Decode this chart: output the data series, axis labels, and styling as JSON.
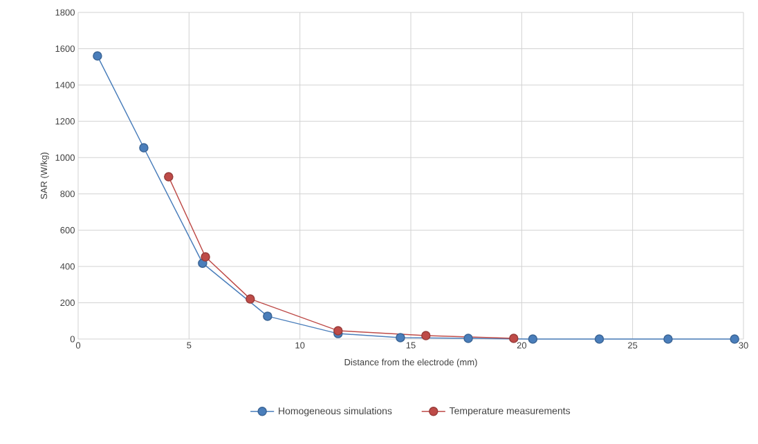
{
  "chart_data": {
    "type": "line",
    "xlabel": "Distance from the electrode (mm)",
    "ylabel": "SAR (W/kg)",
    "xlim": [
      0,
      30
    ],
    "xticks": [
      0,
      5,
      10,
      15,
      20,
      25,
      30
    ],
    "ylim": [
      0,
      1800
    ],
    "yticks": [
      0,
      200,
      400,
      600,
      800,
      1000,
      1200,
      1400,
      1600,
      1800
    ],
    "grid": true,
    "legend": "bottom",
    "marker": "circle",
    "line_style": "solid",
    "series": [
      {
        "name": "Homogeneous simulations",
        "color": "#4a7ebb",
        "x": [
          0.87,
          2.96,
          5.61,
          8.54,
          11.72,
          14.53,
          17.59,
          20.5,
          23.5,
          26.6,
          29.6
        ],
        "values": [
          1560,
          1054,
          418,
          126,
          30,
          8,
          4,
          0,
          0,
          0,
          0
        ]
      },
      {
        "name": "Temperature measurements",
        "color": "#be4b48",
        "x": [
          4.08,
          5.74,
          7.76,
          11.72,
          15.68,
          19.64
        ],
        "values": [
          894,
          453,
          221,
          46,
          19,
          4
        ]
      }
    ]
  }
}
